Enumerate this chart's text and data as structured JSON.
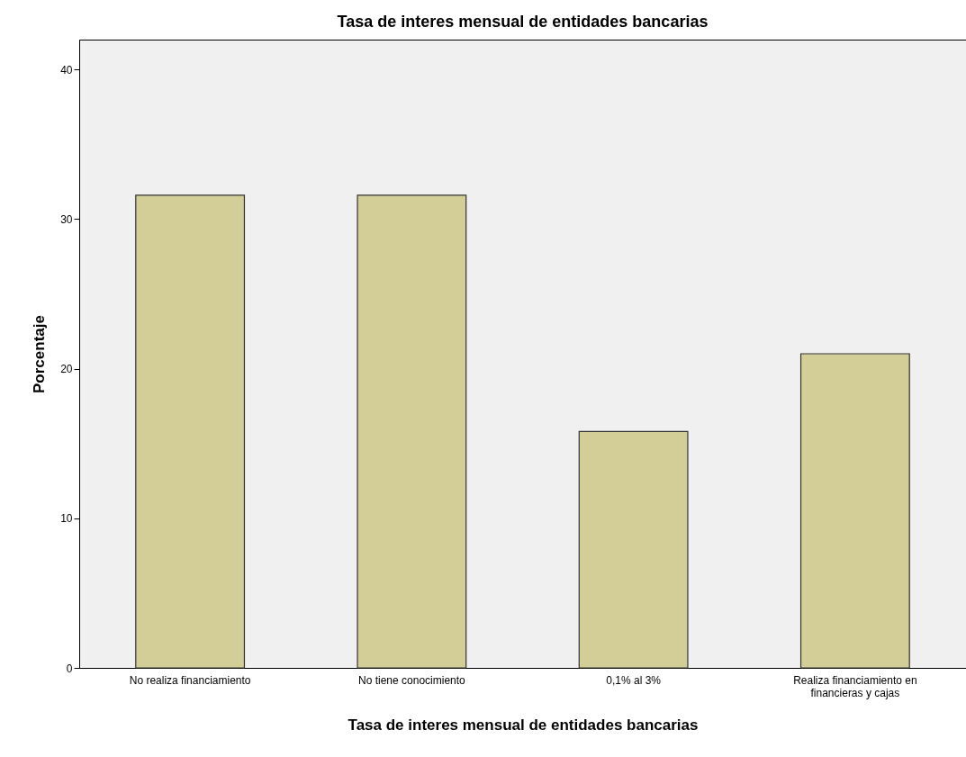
{
  "chart_data": {
    "type": "bar",
    "title": "Tasa de interes mensual de entidades bancarias",
    "xlabel": "Tasa de interes mensual de entidades bancarias",
    "ylabel": "Porcentaje",
    "categories": [
      "No realiza financiamiento",
      "No tiene conocimiento",
      "0,1% al 3%",
      "Realiza financiamiento en financieras y cajas"
    ],
    "values": [
      31.6,
      31.6,
      15.8,
      21.0
    ],
    "color": "#d3ce98",
    "ylim": [
      0,
      42
    ],
    "yticks": [
      0,
      10,
      20,
      30,
      40
    ],
    "grid": false
  }
}
